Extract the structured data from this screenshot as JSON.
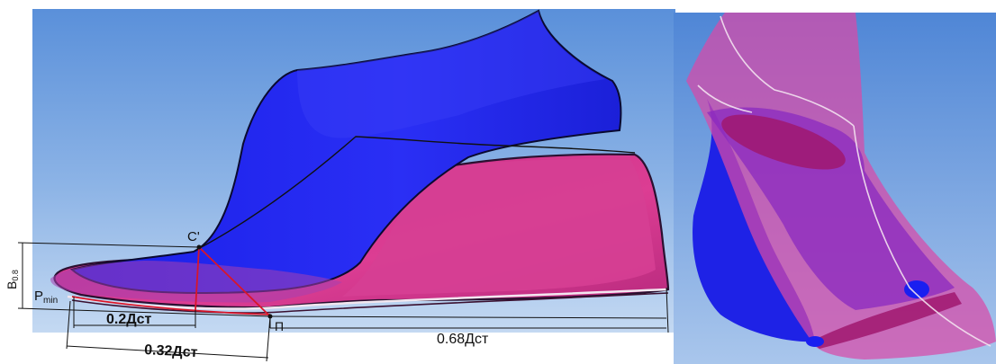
{
  "figure": {
    "labels": {
      "c_prime": "C'",
      "p_min_main": "P",
      "p_min_sub": "min",
      "b_main": "B",
      "b_sub": "0.8",
      "p_point": "П",
      "dim_02": "0.2Дст",
      "dim_032": "0.32Дст",
      "dim_068": "0.68Дст"
    },
    "colors": {
      "upper": "#1d22ee",
      "sole": "#d8388e",
      "background_top": "#5f95dc",
      "background_bottom": "#b9d1ef",
      "construction_line": "#d8162a"
    }
  }
}
